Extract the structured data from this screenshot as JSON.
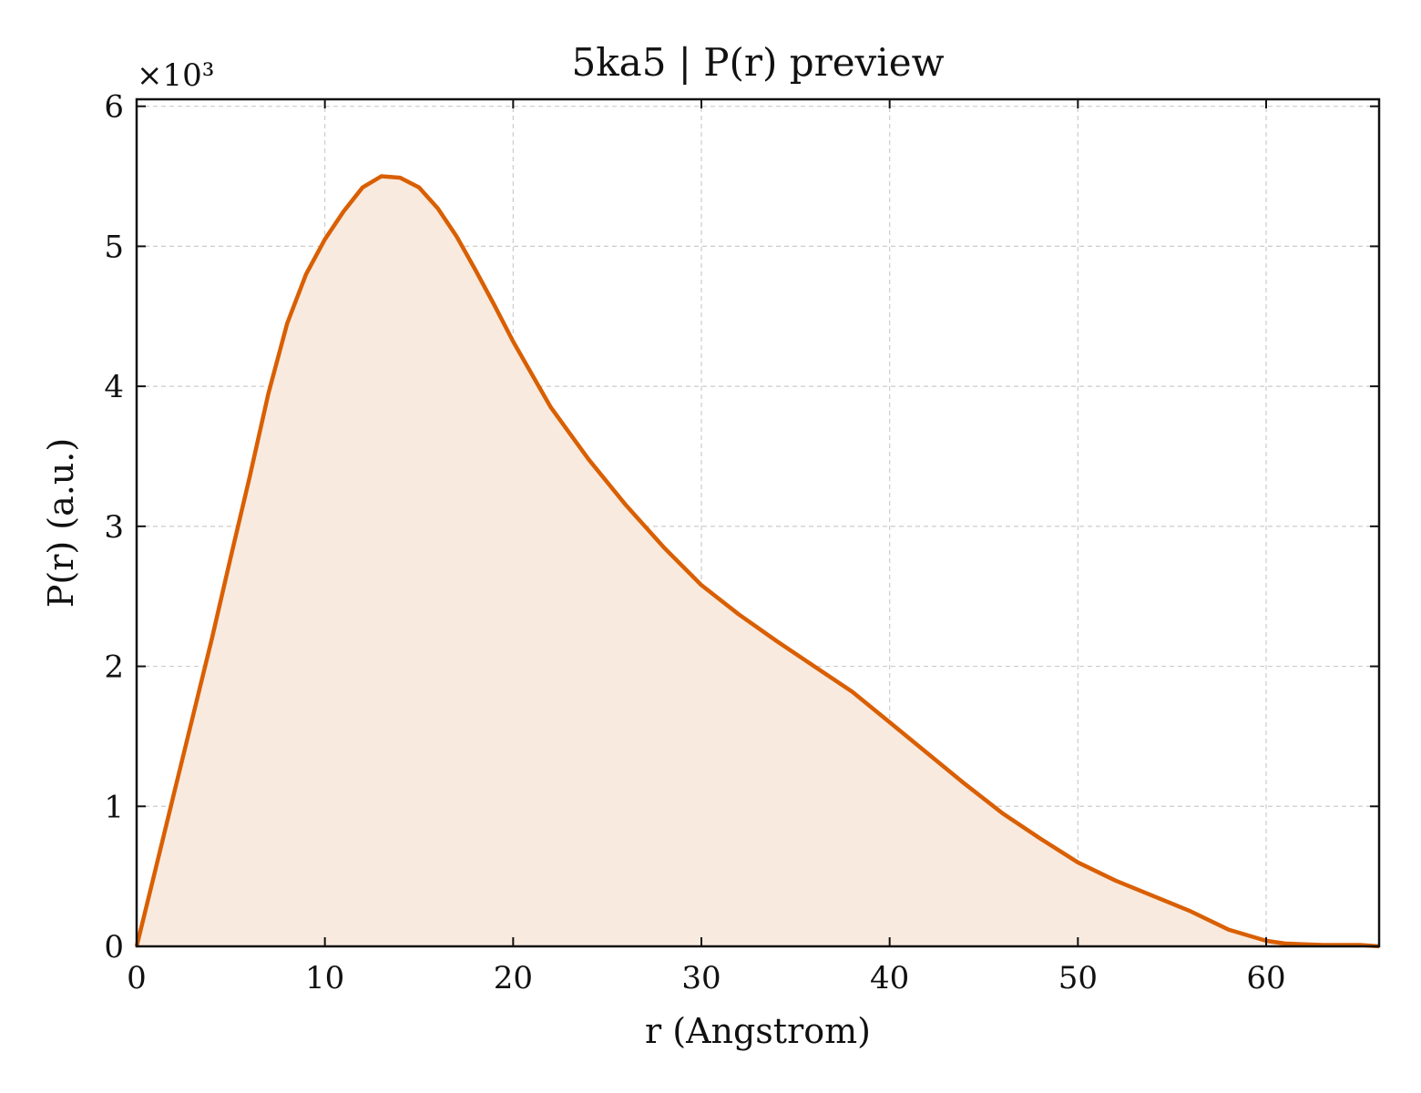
{
  "chart_data": {
    "type": "area",
    "title": "5ka5 | P(r) preview",
    "xlabel": "r (Angstrom)",
    "ylabel": "P(r) (a.u.)",
    "y_multiplier": "×10³",
    "xlim": [
      0,
      66
    ],
    "ylim": [
      0,
      6.05
    ],
    "y_scale_factor": 1000,
    "x_ticks": [
      0,
      10,
      20,
      30,
      40,
      50,
      60
    ],
    "x_tick_labels": [
      "0",
      "10",
      "20",
      "30",
      "40",
      "50",
      "60"
    ],
    "y_ticks": [
      0,
      1,
      2,
      3,
      4,
      5,
      6
    ],
    "y_tick_labels": [
      "0",
      "1",
      "2",
      "3",
      "4",
      "5",
      "6"
    ],
    "grid": true,
    "line_color": "#d95f02",
    "fill_color": "#f9eadf",
    "series": [
      {
        "x": [
          0,
          1,
          2,
          3,
          4,
          5,
          6,
          7,
          8,
          9,
          10,
          11,
          12,
          13,
          14,
          15,
          16,
          17,
          18,
          19,
          20,
          22,
          24,
          26,
          28,
          30,
          32,
          34,
          36,
          38,
          40,
          42,
          44,
          46,
          48,
          50,
          52,
          54,
          56,
          58,
          60,
          61,
          62,
          63,
          64,
          65,
          66
        ],
        "y": [
          0,
          0.55,
          1.1,
          1.65,
          2.2,
          2.78,
          3.35,
          3.95,
          4.45,
          4.8,
          5.05,
          5.25,
          5.42,
          5.5,
          5.49,
          5.42,
          5.27,
          5.07,
          4.83,
          4.58,
          4.32,
          3.85,
          3.48,
          3.15,
          2.85,
          2.58,
          2.37,
          2.18,
          2.0,
          1.82,
          1.6,
          1.38,
          1.16,
          0.95,
          0.77,
          0.6,
          0.47,
          0.36,
          0.25,
          0.12,
          0.04,
          0.02,
          0.015,
          0.01,
          0.01,
          0.01,
          0.0
        ]
      }
    ]
  }
}
